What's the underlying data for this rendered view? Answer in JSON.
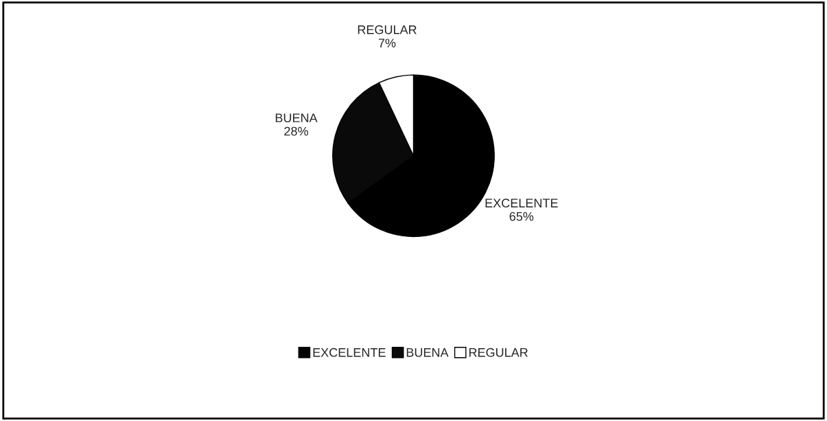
{
  "chart_data": {
    "type": "pie",
    "categories": [
      "EXCELENTE",
      "BUENA",
      "REGULAR"
    ],
    "values": [
      65,
      28,
      7
    ],
    "colors": [
      "#000000",
      "#0a0a0a",
      "#ffffff"
    ],
    "value_labels": [
      "65%",
      "28%",
      "7%"
    ],
    "legend": "bottom"
  }
}
